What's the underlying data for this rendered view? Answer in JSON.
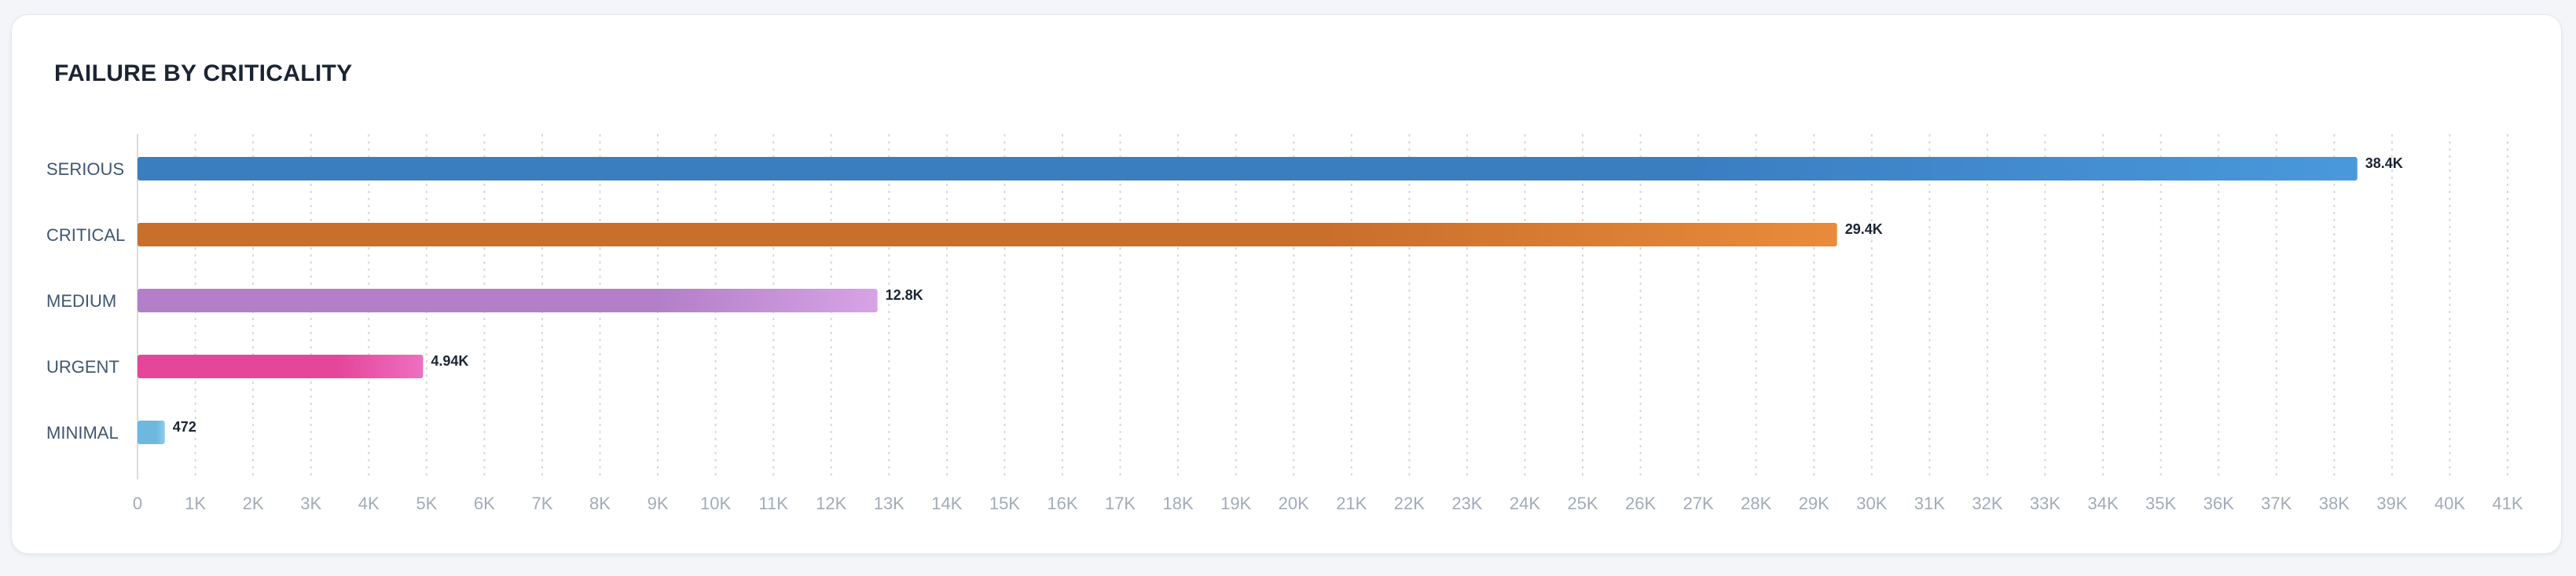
{
  "card": {
    "title": "FAILURE BY CRITICALITY"
  },
  "chart_data": {
    "type": "bar",
    "orientation": "horizontal",
    "title": "FAILURE BY CRITICALITY",
    "categories": [
      "SERIOUS",
      "CRITICAL",
      "MEDIUM",
      "URGENT",
      "MINIMAL"
    ],
    "values": [
      38400,
      29400,
      12800,
      4940,
      472
    ],
    "value_labels": [
      "38.4K",
      "29.4K",
      "12.8K",
      "4.94K",
      "472"
    ],
    "xlim": [
      0,
      41000
    ],
    "x_ticks": [
      "0",
      "1K",
      "2K",
      "3K",
      "4K",
      "5K",
      "6K",
      "7K",
      "8K",
      "9K",
      "10K",
      "11K",
      "12K",
      "13K",
      "14K",
      "15K",
      "16K",
      "17K",
      "18K",
      "19K",
      "20K",
      "21K",
      "22K",
      "23K",
      "24K",
      "25K",
      "26K",
      "27K",
      "28K",
      "29K",
      "30K",
      "31K",
      "32K",
      "33K",
      "34K",
      "35K",
      "36K",
      "37K",
      "38K",
      "39K",
      "40K",
      "41K"
    ],
    "grid": "vertical dotted",
    "colors": [
      [
        "#3a7ec0",
        "#4a98dc"
      ],
      [
        "#c96f2c",
        "#e88b3b"
      ],
      [
        "#b27fc8",
        "#d6a3e6"
      ],
      [
        "#e4469a",
        "#ee6fc0"
      ],
      [
        "#6eb8e0",
        "#8ccdee"
      ]
    ]
  }
}
